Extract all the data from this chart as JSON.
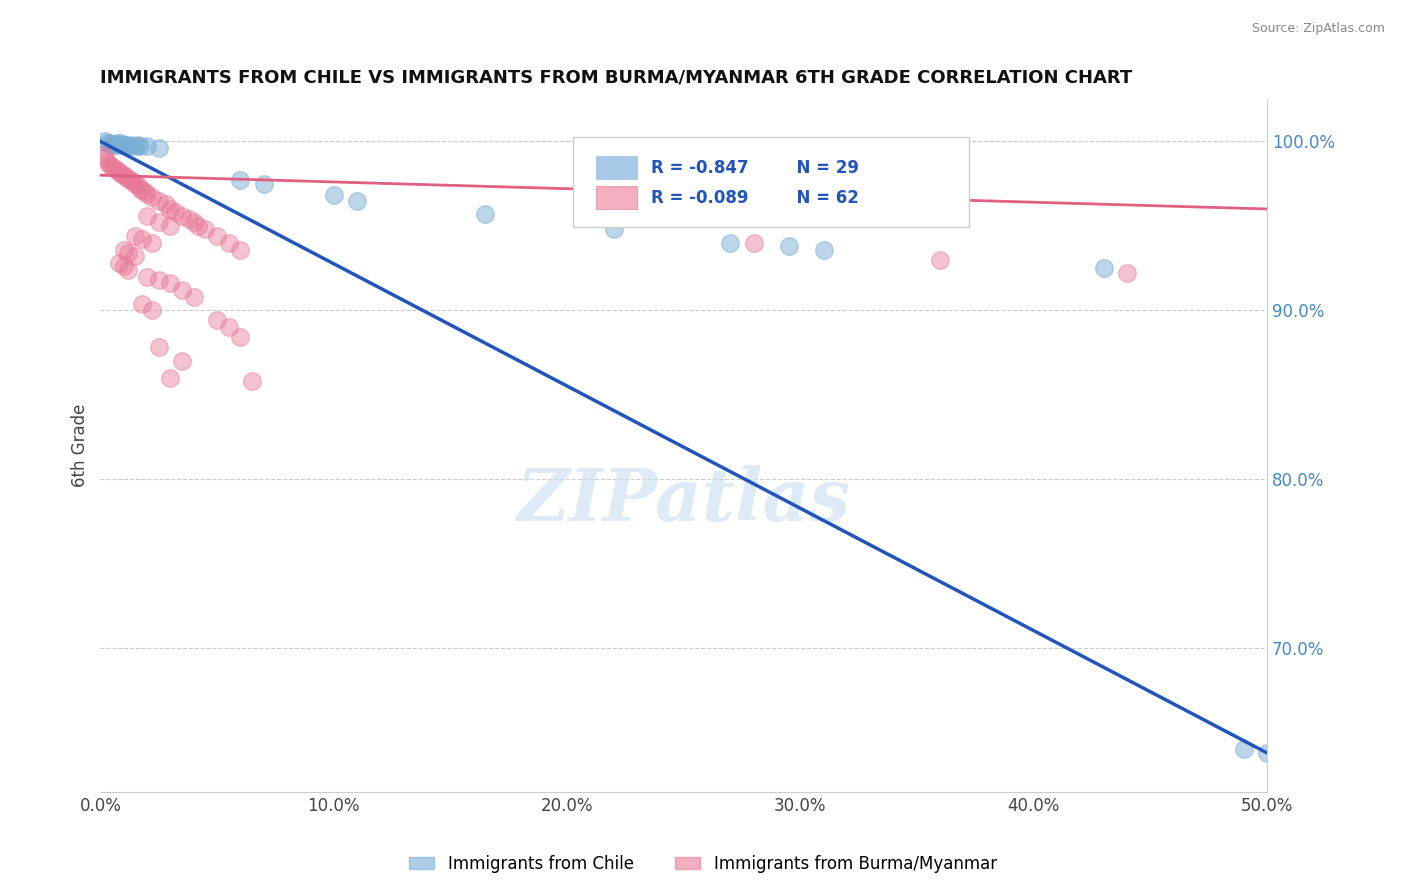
{
  "title": "IMMIGRANTS FROM CHILE VS IMMIGRANTS FROM BURMA/MYANMAR 6TH GRADE CORRELATION CHART",
  "source": "Source: ZipAtlas.com",
  "ylabel": "6th Grade",
  "xlim": [
    0.0,
    0.5
  ],
  "ylim": [
    0.615,
    1.025
  ],
  "xtick_labels": [
    "0.0%",
    "10.0%",
    "20.0%",
    "30.0%",
    "40.0%",
    "50.0%"
  ],
  "xtick_vals": [
    0.0,
    0.1,
    0.2,
    0.3,
    0.4,
    0.5
  ],
  "ytick_right_labels": [
    "100.0%",
    "90.0%",
    "80.0%",
    "70.0%"
  ],
  "ytick_right_vals": [
    1.0,
    0.9,
    0.8,
    0.7
  ],
  "legend_r1": "R = -0.847",
  "legend_n1": "  N = 29",
  "legend_r2": "R = -0.089",
  "legend_n2": "  N = 62",
  "legend_color1": "#a8c8e8",
  "legend_color2": "#f4b0c0",
  "watermark": "ZIPatlas",
  "chile_color": "#7aadd4",
  "burma_color": "#e87898",
  "chile_line_color": "#2255bb",
  "burma_line_color": "#e06080",
  "grid_color": "#cccccc",
  "chile_scatter": [
    [
      0.002,
      1.0
    ],
    [
      0.003,
      0.999
    ],
    [
      0.004,
      0.999
    ],
    [
      0.005,
      0.998
    ],
    [
      0.006,
      0.998
    ],
    [
      0.007,
      0.999
    ],
    [
      0.008,
      0.998
    ],
    [
      0.009,
      0.999
    ],
    [
      0.01,
      0.998
    ],
    [
      0.011,
      0.998
    ],
    [
      0.012,
      0.997
    ],
    [
      0.013,
      0.998
    ],
    [
      0.015,
      0.997
    ],
    [
      0.016,
      0.998
    ],
    [
      0.017,
      0.997
    ],
    [
      0.02,
      0.997
    ],
    [
      0.025,
      0.996
    ],
    [
      0.06,
      0.977
    ],
    [
      0.07,
      0.975
    ],
    [
      0.1,
      0.968
    ],
    [
      0.11,
      0.965
    ],
    [
      0.165,
      0.957
    ],
    [
      0.22,
      0.948
    ],
    [
      0.27,
      0.94
    ],
    [
      0.295,
      0.938
    ],
    [
      0.31,
      0.936
    ],
    [
      0.43,
      0.925
    ],
    [
      0.49,
      0.64
    ],
    [
      0.5,
      0.638
    ]
  ],
  "burma_scatter": [
    [
      0.001,
      0.992
    ],
    [
      0.002,
      0.99
    ],
    [
      0.003,
      0.988
    ],
    [
      0.004,
      0.986
    ],
    [
      0.005,
      0.985
    ],
    [
      0.006,
      0.984
    ],
    [
      0.007,
      0.983
    ],
    [
      0.008,
      0.982
    ],
    [
      0.009,
      0.981
    ],
    [
      0.01,
      0.98
    ],
    [
      0.011,
      0.979
    ],
    [
      0.012,
      0.978
    ],
    [
      0.013,
      0.977
    ],
    [
      0.014,
      0.976
    ],
    [
      0.015,
      0.975
    ],
    [
      0.016,
      0.974
    ],
    [
      0.017,
      0.972
    ],
    [
      0.018,
      0.971
    ],
    [
      0.019,
      0.97
    ],
    [
      0.02,
      0.969
    ],
    [
      0.022,
      0.967
    ],
    [
      0.025,
      0.965
    ],
    [
      0.028,
      0.963
    ],
    [
      0.03,
      0.96
    ],
    [
      0.032,
      0.958
    ],
    [
      0.035,
      0.956
    ],
    [
      0.038,
      0.954
    ],
    [
      0.04,
      0.952
    ],
    [
      0.042,
      0.95
    ],
    [
      0.045,
      0.948
    ],
    [
      0.05,
      0.944
    ],
    [
      0.055,
      0.94
    ],
    [
      0.06,
      0.936
    ],
    [
      0.02,
      0.956
    ],
    [
      0.025,
      0.952
    ],
    [
      0.03,
      0.95
    ],
    [
      0.015,
      0.944
    ],
    [
      0.018,
      0.942
    ],
    [
      0.022,
      0.94
    ],
    [
      0.01,
      0.936
    ],
    [
      0.012,
      0.934
    ],
    [
      0.015,
      0.932
    ],
    [
      0.008,
      0.928
    ],
    [
      0.01,
      0.926
    ],
    [
      0.012,
      0.924
    ],
    [
      0.02,
      0.92
    ],
    [
      0.025,
      0.918
    ],
    [
      0.03,
      0.916
    ],
    [
      0.035,
      0.912
    ],
    [
      0.04,
      0.908
    ],
    [
      0.018,
      0.904
    ],
    [
      0.022,
      0.9
    ],
    [
      0.05,
      0.894
    ],
    [
      0.055,
      0.89
    ],
    [
      0.06,
      0.884
    ],
    [
      0.025,
      0.878
    ],
    [
      0.035,
      0.87
    ],
    [
      0.03,
      0.86
    ],
    [
      0.065,
      0.858
    ],
    [
      0.28,
      0.94
    ],
    [
      0.36,
      0.93
    ],
    [
      0.44,
      0.922
    ]
  ],
  "chile_trend_x": [
    0.0,
    0.5
  ],
  "chile_trend_y": [
    1.0,
    0.638
  ],
  "burma_trend_x": [
    0.0,
    0.5
  ],
  "burma_trend_y": [
    0.98,
    0.96
  ]
}
